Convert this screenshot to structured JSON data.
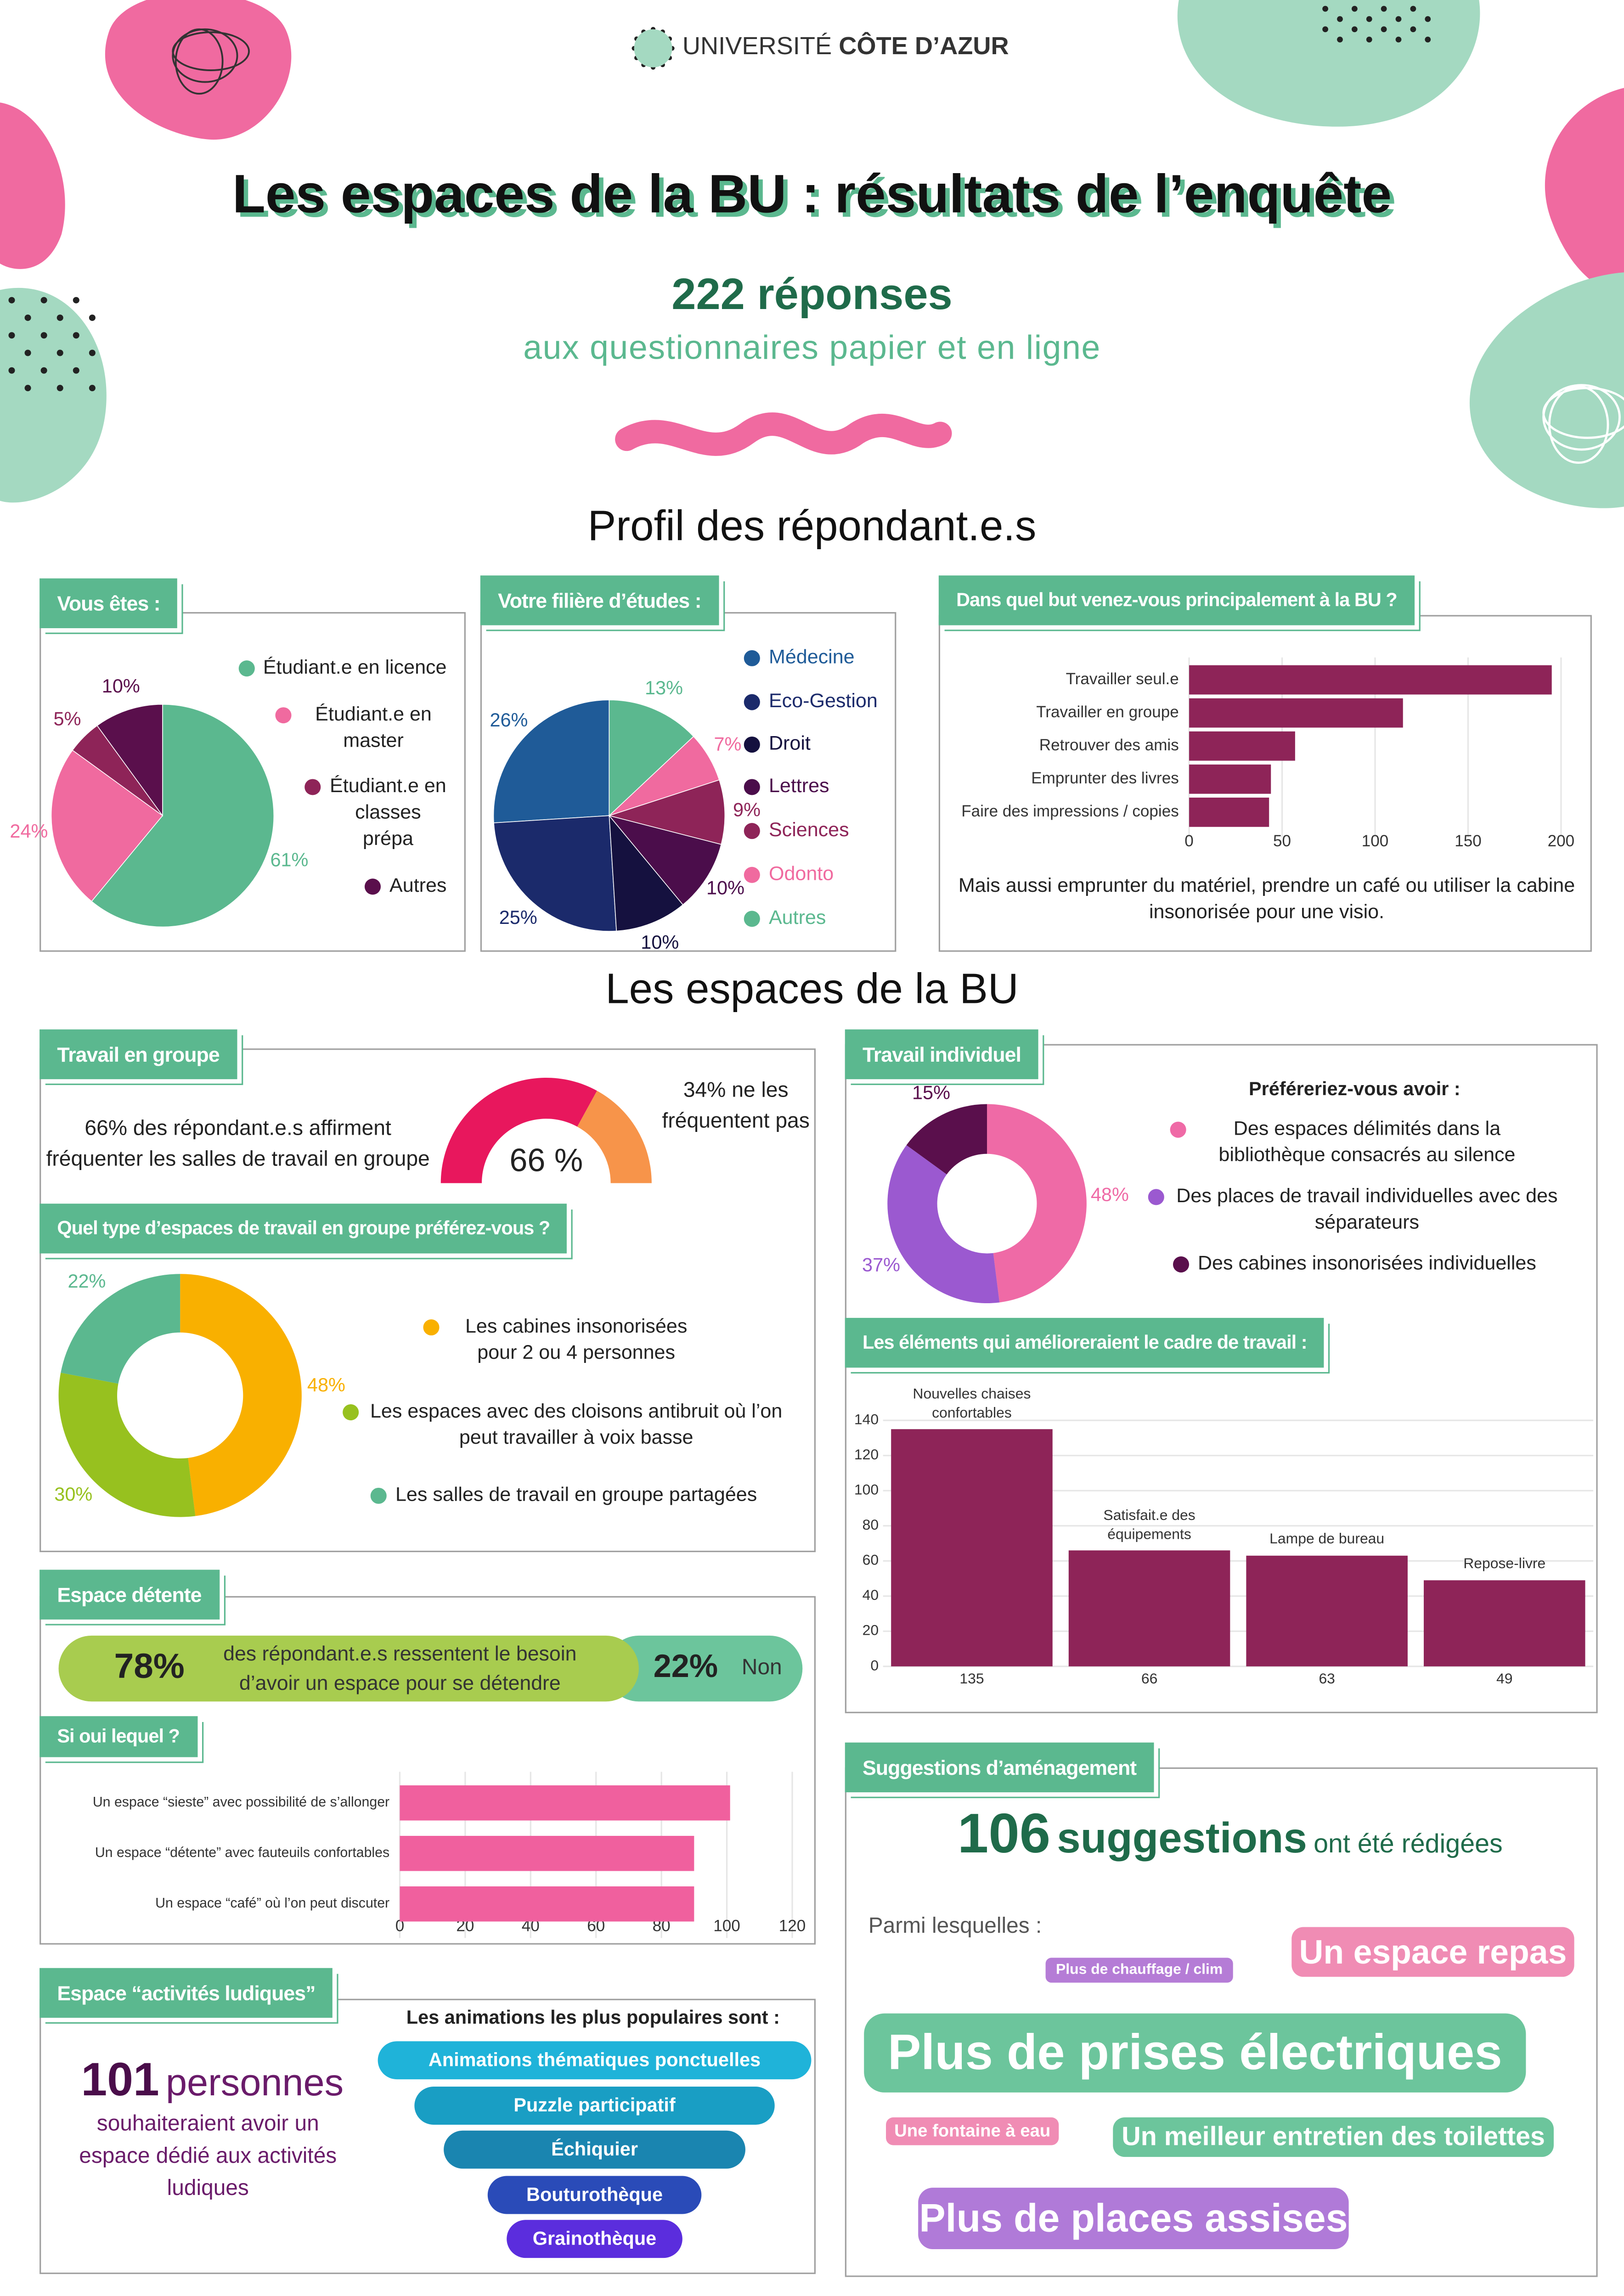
{
  "header": {
    "logo_prefix": "UNIVERSITÉ",
    "logo_name": "CÔTE D’AZUR",
    "title": "Les espaces de la BU : résultats de l’enquête",
    "count": "222 réponses",
    "subtitle": "aux questionnaires papier et en ligne"
  },
  "sections": [
    "Profil des répondant.e.s",
    "Les espaces de la BU"
  ],
  "panels": {
    "individual_work": "Travail individuel",
    "games": "Espace “activités ludiques”",
    "suggestions": "Suggestions d’aménagement"
  },
  "chart_data": [
    {
      "type": "pie",
      "title": "Vous êtes :",
      "categories": [
        "Étudiant.e en licence",
        "Étudiant.e en master",
        "Étudiant.e en classes prépa",
        "Autres"
      ],
      "values": [
        61,
        24,
        5,
        10
      ],
      "value_labels": [
        "61%",
        "24%",
        "5%",
        "10%"
      ],
      "colors": [
        "#5bb88f",
        "#f06a9f",
        "#8e2458",
        "#5a0f4c"
      ]
    },
    {
      "type": "pie",
      "title": "Votre filière d’études :",
      "clockwise": false,
      "categories": [
        "Médecine",
        "Eco-Gestion",
        "Droit",
        "Lettres",
        "Sciences",
        "Odonto",
        "Autres"
      ],
      "values": [
        26,
        25,
        10,
        10,
        9,
        7,
        13
      ],
      "value_labels": [
        "26%",
        "25%",
        "10%",
        "10%",
        "9%",
        "7%",
        "13%"
      ],
      "colors": [
        "#1f5b98",
        "#1b2a6b",
        "#15113f",
        "#4b0d4b",
        "#8e2458",
        "#f06a9f",
        "#5bb88f"
      ]
    },
    {
      "type": "hbar",
      "title": "Dans quel but venez-vous principalement à la BU ?",
      "categories": [
        "Travailler seul.e",
        "Travailler en groupe",
        "Retrouver des amis",
        "Emprunter des livres",
        "Faire des impressions / copies"
      ],
      "values": [
        195,
        115,
        57,
        44,
        43
      ],
      "color": "#8e2458",
      "xlim": [
        0,
        200
      ],
      "xticks": [
        0,
        50,
        100,
        150,
        200
      ],
      "grid": true,
      "note": "Mais aussi emprunter du matériel, prendre un café ou utiliser la cabine insonorisée pour une visio."
    },
    {
      "type": "gauge",
      "title": "Travail en groupe",
      "values": [
        66,
        34
      ],
      "value_labels": [
        "66 %",
        null
      ],
      "colors": [
        "#e8175d",
        "#f7944a"
      ],
      "annotations": [
        "66% des répondant.e.s affirment fréquenter les salles de travail en groupe",
        "34% ne les fréquentent pas"
      ]
    },
    {
      "type": "donut",
      "title": "Quel type d’espaces de travail en groupe préférez-vous ?",
      "categories": [
        "Les cabines insonorisées pour 2 ou 4 personnes",
        "Les espaces avec des cloisons antibruit où l’on peut travailler à voix basse",
        "Les salles de travail en groupe partagées"
      ],
      "values": [
        48,
        30,
        22
      ],
      "value_labels": [
        "48%",
        "30%",
        "22%"
      ],
      "colors": [
        "#f9b000",
        "#97c11f",
        "#5bb88f"
      ]
    },
    {
      "type": "split",
      "title": "Espace détente",
      "categories": [
        "des répondant.e.s ressentent le besoin d’avoir un espace pour se détendre",
        "Non"
      ],
      "values": [
        78,
        22
      ],
      "value_labels": [
        "78%",
        "22%"
      ],
      "colors": [
        "#a8cc4f",
        "#6cc59c"
      ]
    },
    {
      "type": "hbar",
      "title": "Si oui lequel ?",
      "categories": [
        "Un espace “sieste” avec possibilité de s’allonger",
        "Un espace “détente” avec fauteuils confortables",
        "Un espace “café” où l’on peut discuter"
      ],
      "values": [
        101,
        90,
        90
      ],
      "color": "#f0609e",
      "xlim": [
        0,
        120
      ],
      "xticks": [
        0,
        20,
        40,
        60,
        80,
        100,
        120
      ],
      "grid": true
    },
    {
      "type": "donut",
      "title": "Préféreriez-vous avoir :",
      "categories": [
        "Des espaces délimités dans la bibliothèque consacrés au silence",
        "Des places de travail individuelles avec des séparateurs",
        "Des cabines insonorisées individuelles"
      ],
      "values": [
        48,
        37,
        15
      ],
      "value_labels": [
        "48%",
        "37%",
        "15%"
      ],
      "colors": [
        "#ef6aa6",
        "#9b59d0",
        "#5a0f4c"
      ]
    },
    {
      "type": "vbar",
      "title": "Les éléments qui amélioreraient le cadre de travail :",
      "categories": [
        "Nouvelles chaises confortables",
        "Satisfait.e des équipements",
        "Lampe de bureau",
        "Repose-livre"
      ],
      "values": [
        135,
        66,
        63,
        49
      ],
      "color": "#8e2458",
      "ylim": [
        0,
        140
      ],
      "yticks": [
        0,
        20,
        40,
        60,
        80,
        100,
        120,
        140
      ],
      "grid": true
    }
  ],
  "games": {
    "number": 101,
    "unit": "personnes",
    "text": "souhaiteraient avoir un espace dédié aux activités ludiques",
    "list_title": "Les animations les plus populaires sont :",
    "activities": [
      "Animations thématiques ponctuelles",
      "Puzzle participatif",
      "Échiquier",
      "Bouturothèque",
      "Grainothèque"
    ]
  },
  "suggestions": {
    "number": 106,
    "word": "suggestions",
    "text": "ont été rédigées",
    "intro": "Parmi lesquelles :",
    "items": [
      "Un espace repas",
      "Plus de chauffage / clim",
      "Plus de prises électriques",
      "Une fontaine à eau",
      "Un meilleur entretien des toilettes",
      "Plus de places assises"
    ]
  }
}
